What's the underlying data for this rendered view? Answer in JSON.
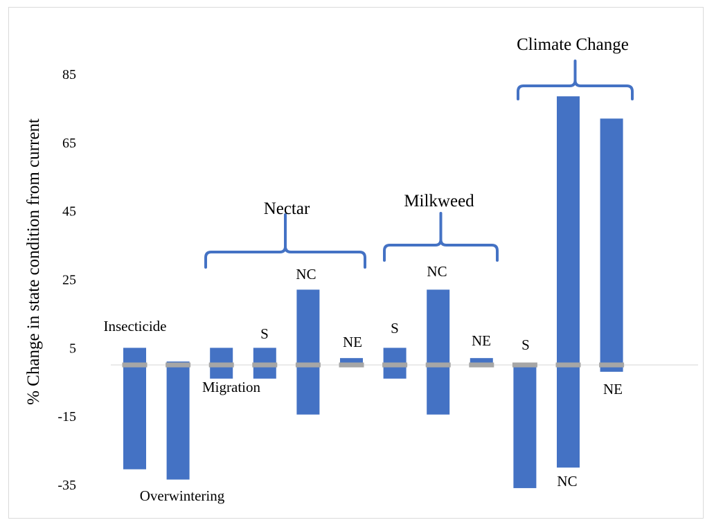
{
  "chart_data": {
    "type": "bar",
    "ylabel": "% Change in state condition from current",
    "xlabel": "",
    "title": "",
    "ylim": [
      -35,
      85
    ],
    "yticks": [
      85,
      65,
      45,
      25,
      5,
      -15,
      -35
    ],
    "grid": false,
    "legend": "none",
    "colors": {
      "bar": "#4472c4",
      "baseline": "#a6a6a6",
      "bracket": "#4472c4",
      "axis": "#d9d9d9"
    },
    "bars": [
      {
        "low": -30.5,
        "high": 5
      },
      {
        "low": -33.5,
        "high": 1
      },
      {
        "low": -4,
        "high": 5
      },
      {
        "low": -4,
        "high": 5
      },
      {
        "low": -14.5,
        "high": 22
      },
      {
        "low": 0,
        "high": 2
      },
      {
        "low": -4,
        "high": 5
      },
      {
        "low": -14.5,
        "high": 22
      },
      {
        "low": 0,
        "high": 2
      },
      {
        "low": -36,
        "high": 0
      },
      {
        "low": -30,
        "high": 78.5
      },
      {
        "low": -2,
        "high": 72
      }
    ],
    "bar_labels": [
      "Insecticide",
      "Overwintering",
      "Migration",
      "S",
      "NC",
      "NE",
      "S",
      "NC",
      "NE",
      "S",
      "NC",
      "NE"
    ],
    "groups": [
      {
        "label": "Nectar",
        "from": 2,
        "to": 5
      },
      {
        "label": "Milkweed",
        "from": 6,
        "to": 8
      },
      {
        "label": "Climate Change",
        "from": 9,
        "to": 11
      }
    ]
  }
}
